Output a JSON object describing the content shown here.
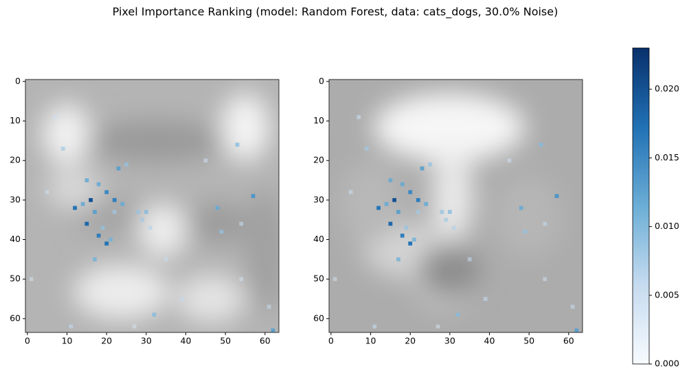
{
  "chart_data": {
    "type": "heatmap",
    "title": "Pixel Importance Ranking (model: Random Forest, data: cats_dogs, 30.0% Noise)",
    "cmap": "Blues",
    "xlim": [
      -0.5,
      63.5
    ],
    "ylim": [
      63.5,
      -0.5
    ],
    "xticks": [
      0,
      10,
      20,
      30,
      40,
      50,
      60
    ],
    "yticks": [
      0,
      10,
      20,
      30,
      40,
      50,
      60
    ],
    "x": [
      16,
      12,
      14,
      18,
      20,
      22,
      24,
      17,
      15,
      18,
      20,
      21,
      19,
      22,
      28,
      30,
      29,
      31,
      48,
      17,
      54,
      57,
      53,
      9,
      23,
      25,
      15,
      32,
      39,
      62,
      61,
      49,
      54,
      1,
      5,
      11,
      45,
      35,
      7,
      27
    ],
    "y": [
      30,
      32,
      31,
      26,
      28,
      30,
      31,
      33,
      36,
      39,
      41,
      40,
      37,
      33,
      33,
      33,
      35,
      37,
      32,
      45,
      36,
      29,
      16,
      17,
      22,
      21,
      25,
      59,
      55,
      63,
      57,
      38,
      50,
      50,
      28,
      62,
      20,
      45,
      9,
      62
    ],
    "values": [
      0.02,
      0.017,
      0.012,
      0.012,
      0.015,
      0.016,
      0.012,
      0.013,
      0.018,
      0.016,
      0.017,
      0.011,
      0.009,
      0.008,
      0.009,
      0.01,
      0.008,
      0.007,
      0.012,
      0.011,
      0.006,
      0.014,
      0.01,
      0.008,
      0.013,
      0.009,
      0.012,
      0.01,
      0.006,
      0.013,
      0.006,
      0.009,
      0.005,
      0.004,
      0.005,
      0.006,
      0.005,
      0.006,
      0.005,
      0.004
    ],
    "colorbar": {
      "lim": [
        0,
        0.023
      ],
      "ticks": [
        {
          "value": 0,
          "label": "0.000"
        },
        0.005,
        {
          "value": 0.01,
          "label": "0.010"
        },
        0.015,
        {
          "value": 0.02,
          "label": "0.020"
        }
      ]
    }
  }
}
